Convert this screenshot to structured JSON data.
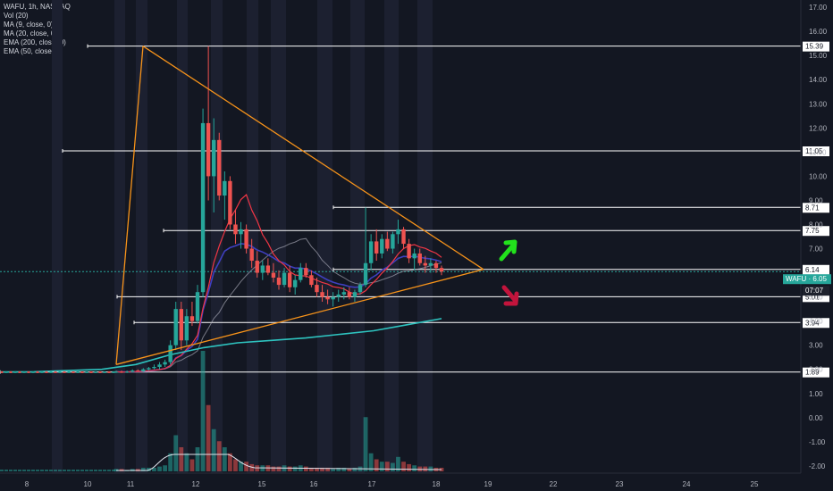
{
  "legend": {
    "title": "WAFU, 1h, NASDAQ",
    "indicators": [
      "Vol (20)",
      "MA (9, close, 0)",
      "MA (20, close, 0)",
      "EMA (200, close, 0)",
      "EMA (50, close, 0)"
    ]
  },
  "price_tag": {
    "label": "WAFU · 6.05",
    "countdown": "07:07",
    "color": "#26a69a"
  },
  "colors": {
    "background": "#131722",
    "up": "#26a69a",
    "down": "#ef5350",
    "triangle": "#f7931a",
    "ma9": "#f23645",
    "ma20": "#b9b9c7",
    "ema200": "#2ec4c0",
    "ema50": "#3f3fbf",
    "arrow_up": "#22e21c",
    "arrow_down": "#c2143c"
  },
  "chart_data": {
    "type": "candlestick",
    "symbol": "WAFU",
    "interval": "1h",
    "exchange": "NASDAQ",
    "y_ticks": [
      17.0,
      16.0,
      15.0,
      14.0,
      13.0,
      12.0,
      11.0,
      10.0,
      9.0,
      8.0,
      7.0,
      6.0,
      5.0,
      4.0,
      3.0,
      2.0,
      1.0,
      0.0,
      -1.0,
      -2.0
    ],
    "y_tick_labels": [
      "17.00",
      "16.00",
      "15.00",
      "14.00",
      "13.00",
      "12.00",
      "11.00",
      "10.00",
      "9.00",
      "8.00",
      "7.00",
      "6.00",
      "5.00",
      "4.00",
      "3.00",
      "2.00",
      "1.00",
      "0.00",
      "-1.00",
      "-2.00"
    ],
    "ylim": [
      -2.3,
      17.3
    ],
    "x_ticks": [
      "8",
      "10",
      "11",
      "12",
      "15",
      "16",
      "17",
      "18",
      "19",
      "22",
      "23",
      "24",
      "25"
    ],
    "levels": [
      15.39,
      11.05,
      8.71,
      7.75,
      6.14,
      5.01,
      3.94,
      1.89
    ],
    "level_labels": [
      "15.39",
      "11.05",
      "8.71",
      "7.75",
      "6.14",
      "5.01",
      "3.94",
      "1.89"
    ],
    "current_price": 6.05,
    "triangle": {
      "apex_high": 15.39,
      "apex_low": 2.2,
      "convergence": 6.14
    },
    "ema200_path": [
      1.89,
      1.9,
      1.95,
      2.0,
      2.2,
      2.6,
      2.9,
      3.1,
      3.2,
      3.3,
      3.45,
      3.6,
      3.85,
      4.1
    ],
    "ohlc": [
      [
        1.9,
        1.95,
        1.85,
        1.9
      ],
      [
        1.9,
        1.95,
        1.85,
        1.88
      ],
      [
        1.88,
        1.95,
        1.85,
        1.9
      ],
      [
        1.9,
        2.0,
        1.88,
        1.95
      ],
      [
        1.95,
        2.0,
        1.9,
        1.92
      ],
      [
        1.92,
        2.05,
        1.9,
        2.0
      ],
      [
        2.0,
        2.1,
        1.95,
        2.05
      ],
      [
        2.05,
        2.2,
        2.0,
        2.1
      ],
      [
        2.1,
        2.3,
        2.0,
        2.2
      ],
      [
        2.2,
        2.4,
        2.1,
        2.3
      ],
      [
        2.3,
        3.2,
        2.2,
        3.0
      ],
      [
        3.0,
        4.8,
        2.8,
        4.5
      ],
      [
        4.5,
        4.8,
        2.8,
        3.2
      ],
      [
        3.2,
        4.5,
        3.0,
        4.2
      ],
      [
        4.2,
        4.8,
        3.8,
        4.0
      ],
      [
        4.0,
        5.5,
        3.9,
        5.2
      ],
      [
        5.2,
        12.8,
        5.0,
        12.2
      ],
      [
        12.2,
        15.39,
        9.0,
        10.0
      ],
      [
        10.0,
        12.4,
        8.5,
        11.5
      ],
      [
        11.5,
        11.8,
        9.0,
        9.2
      ],
      [
        9.2,
        10.2,
        8.2,
        9.8
      ],
      [
        9.8,
        10.0,
        7.8,
        8.0
      ],
      [
        8.0,
        8.6,
        7.2,
        7.6
      ],
      [
        7.6,
        8.1,
        7.0,
        7.8
      ],
      [
        7.8,
        8.0,
        6.8,
        7.0
      ],
      [
        7.0,
        7.4,
        6.2,
        6.5
      ],
      [
        6.5,
        6.9,
        5.8,
        6.0
      ],
      [
        6.0,
        6.5,
        5.7,
        6.3
      ],
      [
        6.3,
        6.6,
        5.9,
        6.0
      ],
      [
        6.0,
        6.4,
        5.6,
        5.8
      ],
      [
        5.8,
        6.1,
        5.3,
        5.5
      ],
      [
        5.5,
        6.2,
        5.4,
        6.0
      ],
      [
        6.0,
        6.3,
        5.2,
        5.4
      ],
      [
        5.4,
        5.9,
        5.1,
        5.7
      ],
      [
        5.7,
        6.4,
        5.6,
        6.2
      ],
      [
        6.2,
        6.4,
        5.8,
        5.9
      ],
      [
        5.9,
        6.1,
        5.4,
        5.5
      ],
      [
        5.5,
        5.8,
        5.0,
        5.2
      ],
      [
        5.2,
        5.5,
        4.8,
        5.0
      ],
      [
        5.0,
        5.3,
        4.7,
        4.9
      ],
      [
        4.9,
        5.2,
        4.6,
        5.0
      ],
      [
        5.0,
        5.3,
        4.8,
        5.1
      ],
      [
        5.1,
        5.4,
        4.9,
        5.2
      ],
      [
        5.2,
        5.4,
        4.9,
        5.0
      ],
      [
        5.0,
        5.3,
        4.8,
        5.2
      ],
      [
        5.2,
        5.6,
        5.1,
        5.5
      ],
      [
        5.5,
        8.71,
        5.4,
        6.4
      ],
      [
        6.4,
        7.6,
        6.1,
        7.3
      ],
      [
        7.3,
        7.8,
        6.5,
        6.8
      ],
      [
        6.8,
        7.6,
        6.6,
        7.4
      ],
      [
        7.4,
        7.7,
        6.9,
        7.0
      ],
      [
        7.0,
        7.7,
        6.8,
        7.6
      ],
      [
        7.6,
        8.2,
        7.2,
        7.8
      ],
      [
        7.8,
        7.9,
        7.0,
        7.2
      ],
      [
        7.2,
        7.4,
        6.4,
        6.6
      ],
      [
        6.6,
        7.0,
        6.1,
        6.8
      ],
      [
        6.8,
        7.0,
        6.3,
        6.4
      ],
      [
        6.4,
        6.7,
        6.0,
        6.3
      ],
      [
        6.3,
        6.6,
        6.0,
        6.4
      ],
      [
        6.4,
        6.5,
        6.0,
        6.2
      ],
      [
        6.2,
        6.3,
        5.9,
        6.05
      ]
    ],
    "volume_bars": [
      0.02,
      0.02,
      0.01,
      0.02,
      0.02,
      0.03,
      0.03,
      0.03,
      0.04,
      0.05,
      0.15,
      0.3,
      0.2,
      0.15,
      0.1,
      0.2,
      1.0,
      0.55,
      0.35,
      0.25,
      0.2,
      0.15,
      0.1,
      0.08,
      0.08,
      0.06,
      0.05,
      0.05,
      0.05,
      0.04,
      0.04,
      0.05,
      0.04,
      0.04,
      0.05,
      0.04,
      0.03,
      0.03,
      0.03,
      0.03,
      0.02,
      0.03,
      0.03,
      0.02,
      0.03,
      0.04,
      0.45,
      0.15,
      0.1,
      0.08,
      0.08,
      0.07,
      0.12,
      0.08,
      0.06,
      0.05,
      0.04,
      0.04,
      0.04,
      0.03,
      0.03
    ]
  }
}
